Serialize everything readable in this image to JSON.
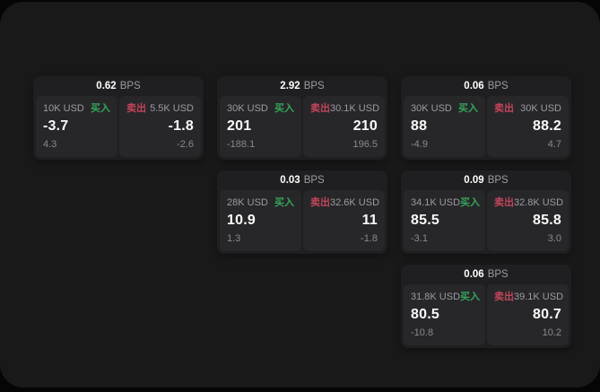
{
  "labels": {
    "buy": "买入",
    "sell": "卖出",
    "bps": "BPS"
  },
  "colors": {
    "buy_green": "#34a65a",
    "sell_red": "#c2455a",
    "page_bg": "#19191a",
    "card_bg": "#1f1f21",
    "panel_bg": "#27272a"
  },
  "cards": [
    {
      "col": 1,
      "row": 1,
      "bps": "0.62",
      "buy": {
        "amount": "10K USD",
        "value": "-3.7",
        "delta": "4.3"
      },
      "sell": {
        "amount": "5.5K USD",
        "value": "-1.8",
        "delta": "-2.6"
      }
    },
    {
      "col": 2,
      "row": 1,
      "bps": "2.92",
      "buy": {
        "amount": "30K USD",
        "value": "201",
        "delta": "-188.1"
      },
      "sell": {
        "amount": "30.1K USD",
        "value": "210",
        "delta": "196.5"
      }
    },
    {
      "col": 3,
      "row": 1,
      "bps": "0.06",
      "buy": {
        "amount": "30K USD",
        "value": "88",
        "delta": "-4.9"
      },
      "sell": {
        "amount": "30K USD",
        "value": "88.2",
        "delta": "4.7"
      }
    },
    {
      "col": 2,
      "row": 2,
      "bps": "0.03",
      "buy": {
        "amount": "28K USD",
        "value": "10.9",
        "delta": "1.3"
      },
      "sell": {
        "amount": "32.6K USD",
        "value": "11",
        "delta": "-1.8"
      }
    },
    {
      "col": 3,
      "row": 2,
      "bps": "0.09",
      "buy": {
        "amount": "34.1K USD",
        "value": "85.5",
        "delta": "-3.1"
      },
      "sell": {
        "amount": "32.8K USD",
        "value": "85.8",
        "delta": "3.0"
      }
    },
    {
      "col": 3,
      "row": 3,
      "bps": "0.06",
      "buy": {
        "amount": "31.8K USD",
        "value": "80.5",
        "delta": "-10.8"
      },
      "sell": {
        "amount": "39.1K USD",
        "value": "80.7",
        "delta": "10.2"
      }
    }
  ]
}
